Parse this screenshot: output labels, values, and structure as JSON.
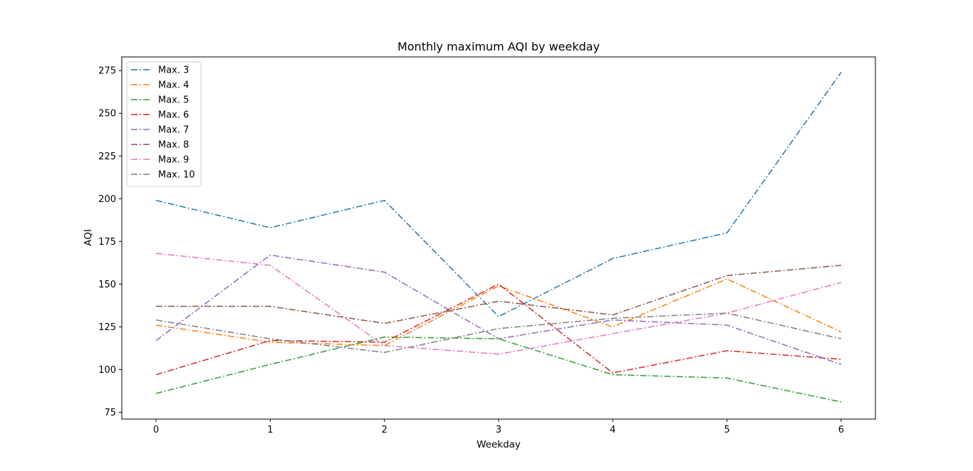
{
  "chart_data": {
    "type": "line",
    "title": "Monthly maximum AQI by weekday",
    "xlabel": "Weekday",
    "ylabel": "AQI",
    "x": [
      0,
      1,
      2,
      3,
      4,
      5,
      6
    ],
    "xlim": [
      -0.3,
      6.3
    ],
    "ylim": [
      71,
      283
    ],
    "yticks": [
      75,
      100,
      125,
      150,
      175,
      200,
      225,
      250,
      275
    ],
    "grid": false,
    "legend_position": "upper-left",
    "line_style": "dash-dot",
    "series": [
      {
        "name": "Max. 3",
        "color": "#1f77b4",
        "values": [
          199,
          183,
          199,
          131,
          165,
          180,
          274
        ]
      },
      {
        "name": "Max. 4",
        "color": "#ff7f0e",
        "values": [
          126,
          116,
          114,
          149,
          125,
          153,
          122
        ]
      },
      {
        "name": "Max. 5",
        "color": "#2ca02c",
        "values": [
          86,
          103,
          119,
          118,
          97,
          95,
          81
        ]
      },
      {
        "name": "Max. 6",
        "color": "#d62728",
        "values": [
          97,
          117,
          116,
          150,
          98,
          111,
          106
        ]
      },
      {
        "name": "Max. 7",
        "color": "#9467bd",
        "values": [
          117,
          167,
          157,
          118,
          129,
          126,
          103
        ]
      },
      {
        "name": "Max. 8",
        "color": "#8c564b",
        "values": [
          137,
          137,
          127,
          140,
          132,
          155,
          161
        ]
      },
      {
        "name": "Max. 9",
        "color": "#e377c2",
        "values": [
          168,
          161,
          114,
          109,
          121,
          133,
          151
        ]
      },
      {
        "name": "Max. 10",
        "color": "#7f7f7f",
        "values": [
          129,
          118,
          110,
          124,
          130,
          133,
          118
        ]
      }
    ]
  }
}
